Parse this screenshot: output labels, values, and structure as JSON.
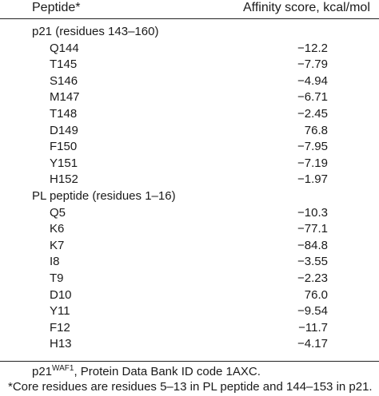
{
  "table": {
    "header": {
      "peptide": "Peptide*",
      "score": "Affinity score, kcal/mol"
    },
    "rows": [
      {
        "kind": "group",
        "label": "p21 (residues 143–160)",
        "value": ""
      },
      {
        "kind": "item",
        "label": "Q144",
        "value": "−12.2"
      },
      {
        "kind": "item",
        "label": "T145",
        "value": "−7.79"
      },
      {
        "kind": "item",
        "label": "S146",
        "value": "−4.94"
      },
      {
        "kind": "item",
        "label": "M147",
        "value": "−6.71"
      },
      {
        "kind": "item",
        "label": "T148",
        "value": "−2.45"
      },
      {
        "kind": "item",
        "label": "D149",
        "value": "76.8"
      },
      {
        "kind": "item",
        "label": "F150",
        "value": "−7.95"
      },
      {
        "kind": "item",
        "label": "Y151",
        "value": "−7.19"
      },
      {
        "kind": "item",
        "label": "H152",
        "value": "−1.97"
      },
      {
        "kind": "group",
        "label": "PL peptide (residues 1–16)",
        "value": ""
      },
      {
        "kind": "item",
        "label": "Q5",
        "value": "−10.3"
      },
      {
        "kind": "item",
        "label": "K6",
        "value": "−77.1"
      },
      {
        "kind": "item",
        "label": "K7",
        "value": "−84.8"
      },
      {
        "kind": "item",
        "label": "I8",
        "value": "−3.55"
      },
      {
        "kind": "item",
        "label": "T9",
        "value": "−2.23"
      },
      {
        "kind": "item",
        "label": "D10",
        "value": "76.0"
      },
      {
        "kind": "item",
        "label": "Y11",
        "value": "−9.54"
      },
      {
        "kind": "item",
        "label": "F12",
        "value": "−11.7"
      },
      {
        "kind": "item",
        "label": "H13",
        "value": "−4.17"
      }
    ]
  },
  "footnotes": {
    "line1_prefix": "p21",
    "line1_sup": "WAF1",
    "line1_rest": ", Protein Data Bank ID code 1AXC.",
    "line2": "*Core residues are residues 5–13 in PL peptide and 144–153 in p21."
  }
}
